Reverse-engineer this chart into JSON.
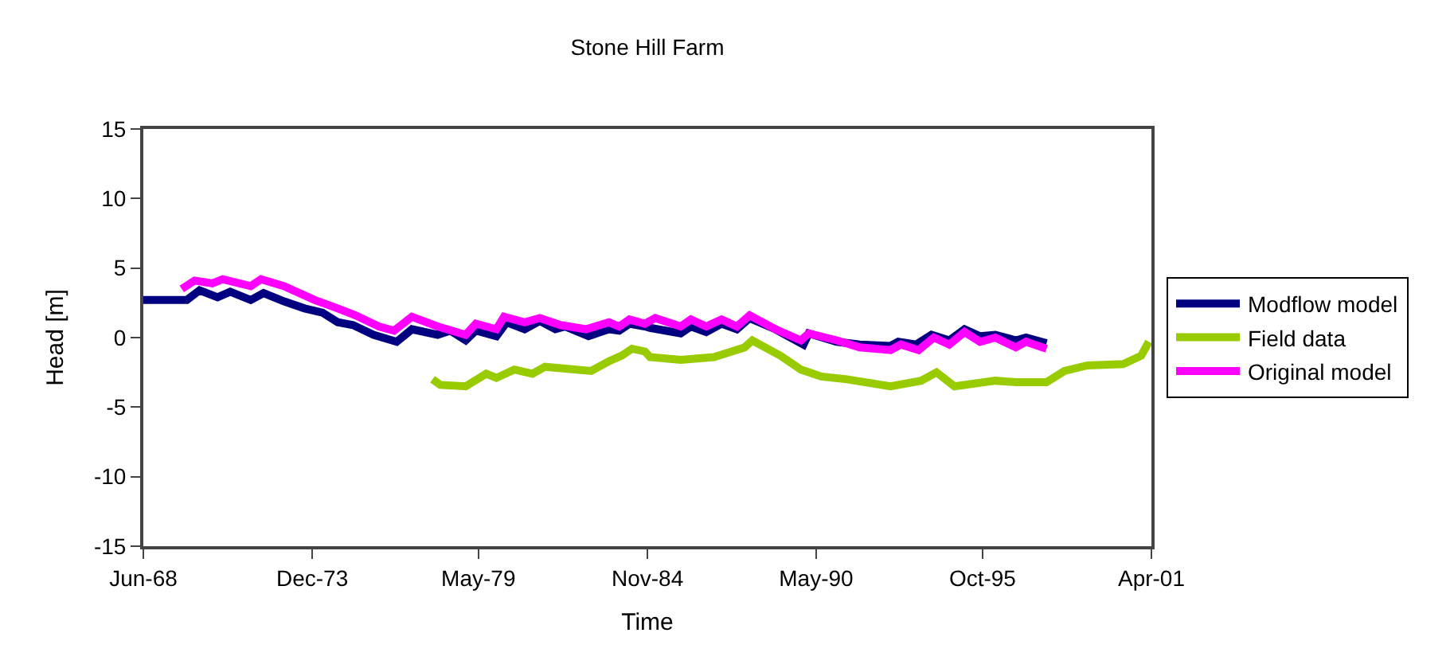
{
  "chart_data": {
    "type": "line",
    "title": "Stone Hill Farm",
    "xlabel": "Time",
    "ylabel": "Head [m]",
    "xlim": [
      "1968-06",
      "2001-04"
    ],
    "xticks": [
      {
        "value": "1968-06",
        "label": "Jun-68"
      },
      {
        "value": "1973-12",
        "label": "Dec-73"
      },
      {
        "value": "1979-05",
        "label": "May-79"
      },
      {
        "value": "1984-11",
        "label": "Nov-84"
      },
      {
        "value": "1990-05",
        "label": "May-90"
      },
      {
        "value": "1995-10",
        "label": "Oct-95"
      },
      {
        "value": "2001-04",
        "label": "Apr-01"
      }
    ],
    "ylim": [
      -15,
      15
    ],
    "yticks": [
      -15,
      -10,
      -5,
      0,
      5,
      10,
      15
    ],
    "legend": "right",
    "marker": "none",
    "line_style": "solid",
    "series": [
      {
        "name": "Modflow model",
        "color": "#000080",
        "x": [
          "1968-06",
          "1969-11",
          "1970-04",
          "1970-11",
          "1971-04",
          "1971-12",
          "1972-05",
          "1973-01",
          "1973-09",
          "1974-04",
          "1974-10",
          "1975-04",
          "1975-12",
          "1976-09",
          "1977-03",
          "1978-01",
          "1978-06",
          "1978-12",
          "1979-04",
          "1979-12",
          "1980-04",
          "1980-11",
          "1981-05",
          "1981-11",
          "1982-03",
          "1982-12",
          "1983-08",
          "1983-12",
          "1984-04",
          "1984-10",
          "1984-12",
          "1985-12",
          "1986-04",
          "1986-10",
          "1987-04",
          "1987-10",
          "1988-03",
          "1989-01",
          "1989-12",
          "1990-02",
          "1991-01",
          "1991-10",
          "1992-10",
          "1993-01",
          "1993-08",
          "1994-02",
          "1994-09",
          "1995-03",
          "1995-09",
          "1996-03",
          "1996-11",
          "1997-03",
          "1997-11"
        ],
        "values": [
          2.7,
          2.7,
          3.4,
          2.9,
          3.3,
          2.7,
          3.2,
          2.6,
          2.1,
          1.8,
          1.1,
          0.9,
          0.2,
          -0.3,
          0.6,
          0.2,
          0.5,
          -0.2,
          0.5,
          0.1,
          1.1,
          0.6,
          1.2,
          0.6,
          0.8,
          0.1,
          0.6,
          0.5,
          1.0,
          0.8,
          0.7,
          0.3,
          0.8,
          0.4,
          1.0,
          0.6,
          1.4,
          0.6,
          -0.5,
          0.3,
          -0.3,
          -0.5,
          -0.6,
          -0.3,
          -0.5,
          0.2,
          -0.2,
          0.6,
          0.1,
          0.2,
          -0.2,
          0.0,
          -0.4
        ]
      },
      {
        "name": "Field data",
        "color": "#99cc00",
        "x": [
          "1977-11",
          "1978-02",
          "1978-12",
          "1979-08",
          "1979-12",
          "1980-07",
          "1981-02",
          "1981-07",
          "1983-01",
          "1983-08",
          "1984-01",
          "1984-05",
          "1984-10",
          "1984-12",
          "1985-12",
          "1987-01",
          "1988-01",
          "1988-04",
          "1989-03",
          "1989-11",
          "1990-07",
          "1991-05",
          "1992-10",
          "1993-10",
          "1994-04",
          "1994-11",
          "1996-03",
          "1996-11",
          "1997-11",
          "1998-06",
          "1999-03",
          "2000-05",
          "2000-12",
          "2001-03"
        ],
        "values": [
          -3.0,
          -3.4,
          -3.5,
          -2.6,
          -2.9,
          -2.3,
          -2.6,
          -2.1,
          -2.4,
          -1.7,
          -1.3,
          -0.8,
          -1.0,
          -1.4,
          -1.6,
          -1.4,
          -0.7,
          -0.2,
          -1.3,
          -2.3,
          -2.8,
          -3.0,
          -3.5,
          -3.1,
          -2.5,
          -3.5,
          -3.1,
          -3.2,
          -3.2,
          -2.4,
          -2.0,
          -1.9,
          -1.3,
          -0.3
        ]
      },
      {
        "name": "Original model",
        "color": "#ff00ff",
        "x": [
          "1969-09",
          "1970-02",
          "1970-09",
          "1971-01",
          "1971-12",
          "1972-04",
          "1973-01",
          "1974-01",
          "1974-10",
          "1975-05",
          "1976-02",
          "1976-08",
          "1977-03",
          "1978-01",
          "1978-12",
          "1979-04",
          "1979-12",
          "1980-03",
          "1980-11",
          "1981-05",
          "1982-01",
          "1982-11",
          "1983-08",
          "1983-12",
          "1984-04",
          "1984-10",
          "1985-02",
          "1985-12",
          "1986-04",
          "1986-10",
          "1987-04",
          "1987-10",
          "1988-03",
          "1989-01",
          "1989-11",
          "1990-02",
          "1991-01",
          "1991-10",
          "1992-10",
          "1993-02",
          "1993-09",
          "1994-03",
          "1994-09",
          "1995-03",
          "1995-09",
          "1996-03",
          "1996-11",
          "1997-03",
          "1997-11"
        ],
        "values": [
          3.5,
          4.1,
          3.9,
          4.2,
          3.7,
          4.2,
          3.7,
          2.7,
          2.1,
          1.6,
          0.8,
          0.5,
          1.5,
          0.8,
          0.2,
          1.0,
          0.6,
          1.5,
          1.1,
          1.4,
          0.9,
          0.6,
          1.1,
          0.8,
          1.3,
          1.0,
          1.4,
          0.8,
          1.3,
          0.8,
          1.3,
          0.8,
          1.6,
          0.6,
          -0.2,
          0.3,
          -0.2,
          -0.7,
          -0.9,
          -0.5,
          -0.9,
          0.0,
          -0.5,
          0.4,
          -0.3,
          0.0,
          -0.7,
          -0.3,
          -0.8
        ]
      }
    ]
  }
}
